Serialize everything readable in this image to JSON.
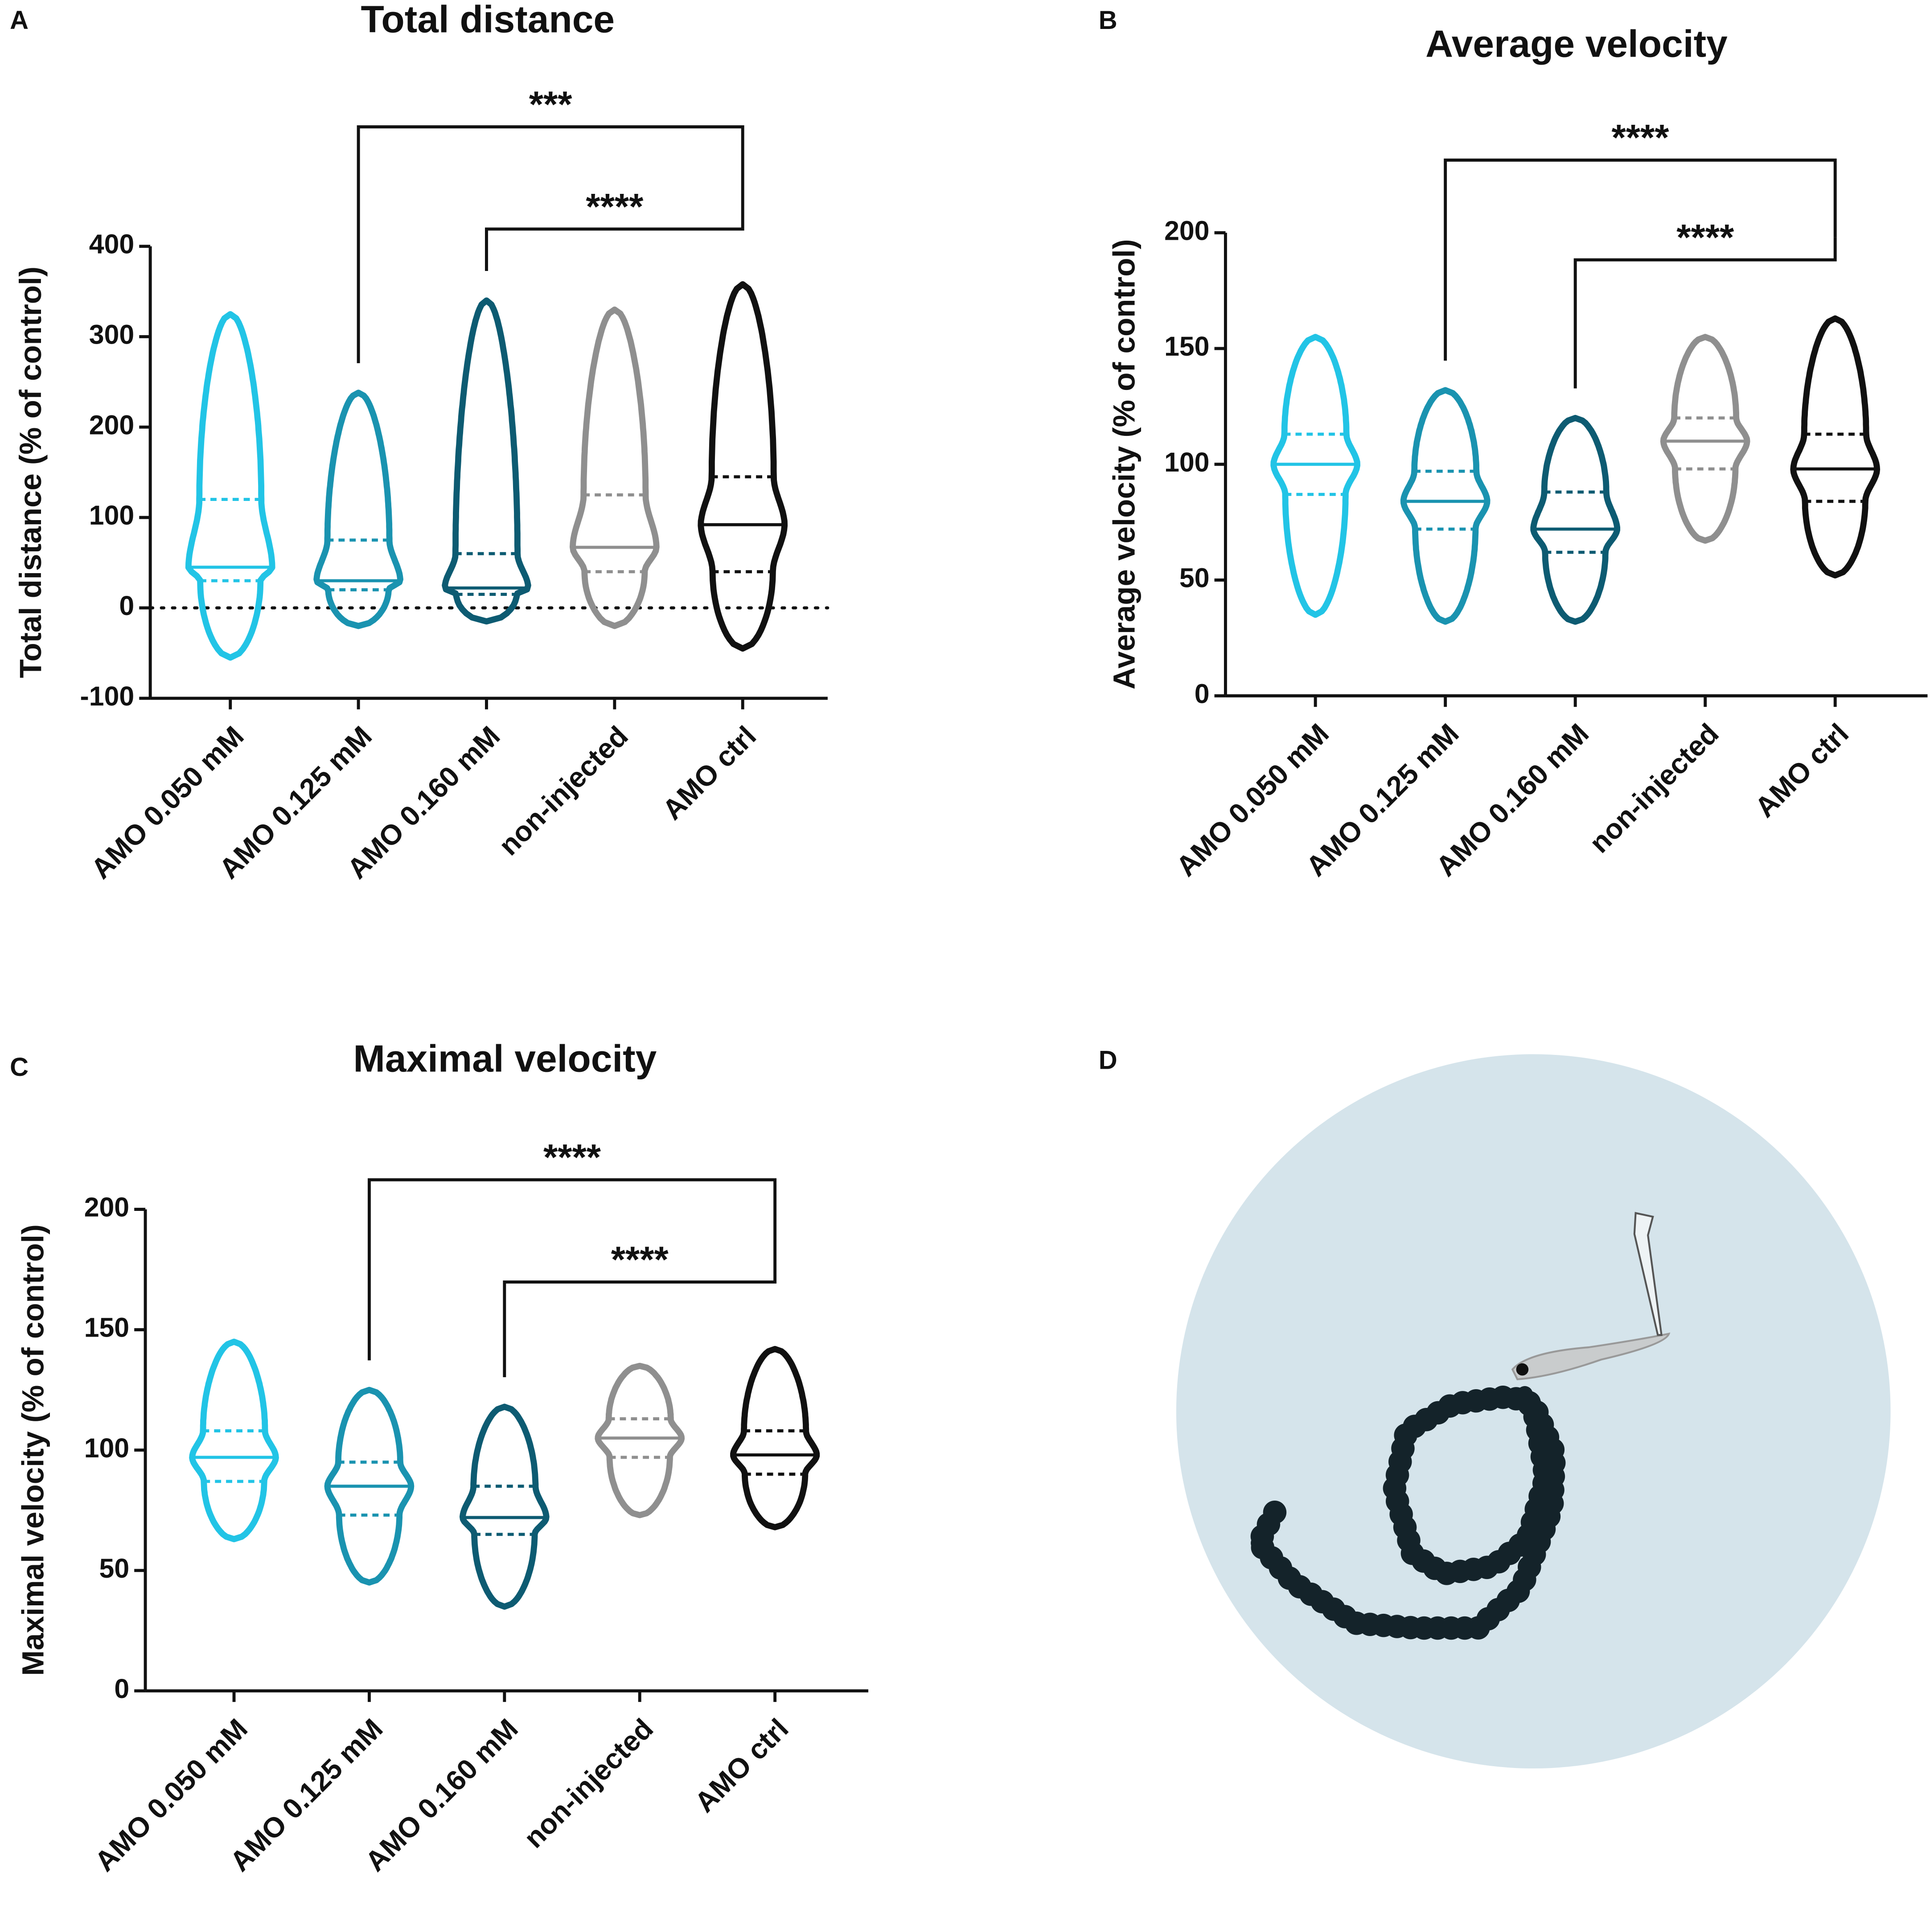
{
  "chart_data": [
    {
      "type": "violin",
      "panel": "A",
      "title": "Total distance",
      "ylabel": "Total distance (% of control)",
      "categories": [
        "AMO 0.050 mM",
        "AMO 0.125 mM",
        "AMO 0.160 mM",
        "non-injected",
        "AMO ctrl"
      ],
      "colors": [
        "#22c4e6",
        "#1a93b0",
        "#0d5b72",
        "#8f8f8f",
        "#111111"
      ],
      "stats": [
        {
          "min": -55,
          "q1": 30,
          "median": 45,
          "q3": 120,
          "max": 325
        },
        {
          "min": -20,
          "q1": 20,
          "median": 30,
          "q3": 75,
          "max": 238
        },
        {
          "min": -15,
          "q1": 15,
          "median": 22,
          "q3": 60,
          "max": 340
        },
        {
          "min": -20,
          "q1": 40,
          "median": 67,
          "q3": 125,
          "max": 330
        },
        {
          "min": -45,
          "q1": 40,
          "median": 92,
          "q3": 145,
          "max": 358
        }
      ],
      "ylim": [
        -100,
        400
      ],
      "yticks": [
        -100,
        0,
        100,
        200,
        300,
        400
      ],
      "reference_line": 0,
      "comparisons": [
        {
          "between": [
            "AMO 0.125 mM",
            "AMO ctrl"
          ],
          "label": "***"
        },
        {
          "between": [
            "AMO 0.160 mM",
            "AMO ctrl"
          ],
          "label": "****"
        }
      ]
    },
    {
      "type": "violin",
      "panel": "B",
      "title": "Average velocity",
      "ylabel": "Average velocity (% of control)",
      "categories": [
        "AMO 0.050 mM",
        "AMO 0.125 mM",
        "AMO 0.160 mM",
        "non-injected",
        "AMO ctrl"
      ],
      "colors": [
        "#22c4e6",
        "#1a93b0",
        "#0d5b72",
        "#8f8f8f",
        "#111111"
      ],
      "stats": [
        {
          "min": 35,
          "q1": 87,
          "median": 100,
          "q3": 113,
          "max": 155
        },
        {
          "min": 32,
          "q1": 72,
          "median": 84,
          "q3": 97,
          "max": 132
        },
        {
          "min": 32,
          "q1": 62,
          "median": 72,
          "q3": 88,
          "max": 120
        },
        {
          "min": 67,
          "q1": 98,
          "median": 110,
          "q3": 120,
          "max": 155
        },
        {
          "min": 52,
          "q1": 84,
          "median": 98,
          "q3": 113,
          "max": 163
        }
      ],
      "ylim": [
        0,
        200
      ],
      "yticks": [
        0,
        50,
        100,
        150,
        200
      ],
      "comparisons": [
        {
          "between": [
            "AMO 0.125 mM",
            "AMO ctrl"
          ],
          "label": "****"
        },
        {
          "between": [
            "AMO 0.160 mM",
            "AMO ctrl"
          ],
          "label": "****"
        }
      ]
    },
    {
      "type": "violin",
      "panel": "C",
      "title": "Maximal velocity",
      "ylabel": "Maximal velocity (% of control)",
      "categories": [
        "AMO 0.050 mM",
        "AMO 0.125 mM",
        "AMO 0.160 mM",
        "non-injected",
        "AMO ctrl"
      ],
      "colors": [
        "#22c4e6",
        "#1a93b0",
        "#0d5b72",
        "#8f8f8f",
        "#111111"
      ],
      "stats": [
        {
          "min": 63,
          "q1": 87,
          "median": 97,
          "q3": 108,
          "max": 145
        },
        {
          "min": 45,
          "q1": 73,
          "median": 85,
          "q3": 95,
          "max": 125
        },
        {
          "min": 35,
          "q1": 65,
          "median": 72,
          "q3": 85,
          "max": 118
        },
        {
          "min": 73,
          "q1": 97,
          "median": 105,
          "q3": 113,
          "max": 135
        },
        {
          "min": 68,
          "q1": 90,
          "median": 98,
          "q3": 108,
          "max": 142
        }
      ],
      "ylim": [
        0,
        200
      ],
      "yticks": [
        0,
        50,
        100,
        150,
        200
      ],
      "comparisons": [
        {
          "between": [
            "AMO 0.125 mM",
            "AMO ctrl"
          ],
          "label": "****"
        },
        {
          "between": [
            "AMO 0.160 mM",
            "AMO ctrl"
          ],
          "label": "****"
        }
      ]
    }
  ],
  "illustration": {
    "panel": "D"
  }
}
